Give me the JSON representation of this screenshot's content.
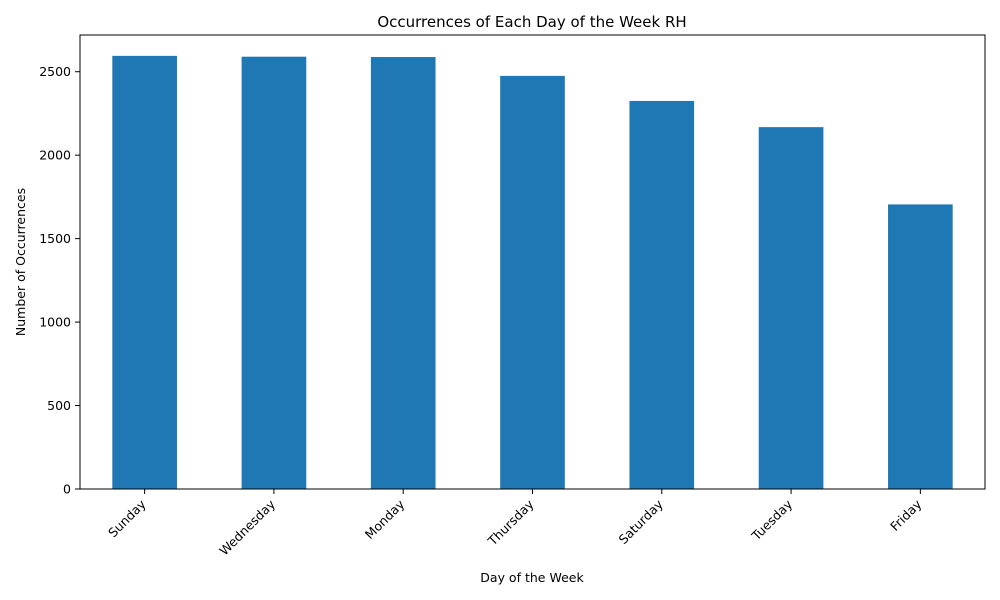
{
  "chart_data": {
    "type": "bar",
    "title": "Occurrences of Each Day of the Week RH",
    "xlabel": "Day of the Week",
    "ylabel": "Number of Occurrences",
    "categories": [
      "Sunday",
      "Wednesday",
      "Monday",
      "Thursday",
      "Saturday",
      "Tuesday",
      "Friday"
    ],
    "values": [
      2595,
      2590,
      2588,
      2475,
      2325,
      2168,
      1705
    ],
    "ylim": [
      0,
      2720
    ],
    "yticks": [
      0,
      500,
      1000,
      1500,
      2000,
      2500
    ],
    "bar_color": "#1f77b4",
    "grid": false,
    "legend": "none"
  }
}
